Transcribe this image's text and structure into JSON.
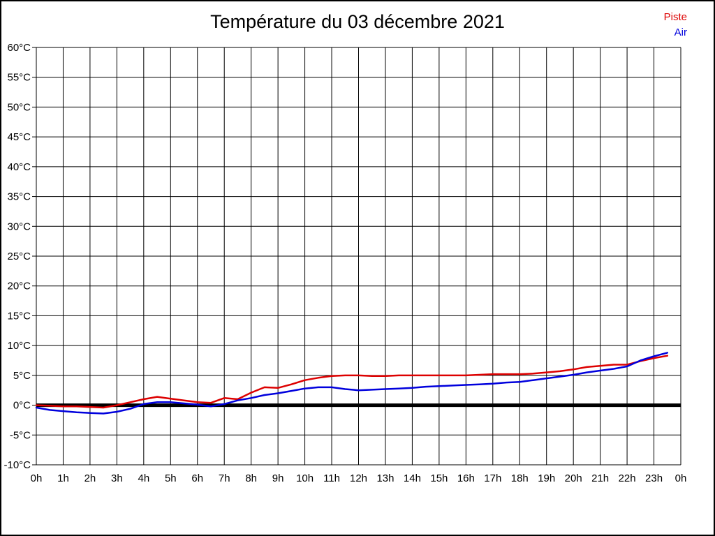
{
  "title": "Température du 03 décembre 2021",
  "legend": {
    "items": [
      {
        "label": "Piste",
        "color": "#dd0000"
      },
      {
        "label": "Air",
        "color": "#0000dd"
      }
    ],
    "position": "top-right"
  },
  "chart_data": {
    "type": "line",
    "title": "Température du 03 décembre 2021",
    "xlabel": "",
    "ylabel": "",
    "xlim": [
      0,
      24
    ],
    "ylim": [
      -10,
      60
    ],
    "grid": true,
    "grid_color": "#000000",
    "zero_line": {
      "value": 0,
      "color": "#000000",
      "width": 5
    },
    "x_tick_values": [
      0,
      1,
      2,
      3,
      4,
      5,
      6,
      7,
      8,
      9,
      10,
      11,
      12,
      13,
      14,
      15,
      16,
      17,
      18,
      19,
      20,
      21,
      22,
      23,
      24
    ],
    "x_tick_labels": [
      "0h",
      "1h",
      "2h",
      "3h",
      "4h",
      "5h",
      "6h",
      "7h",
      "8h",
      "9h",
      "10h",
      "11h",
      "12h",
      "13h",
      "14h",
      "15h",
      "16h",
      "17h",
      "18h",
      "19h",
      "20h",
      "21h",
      "22h",
      "23h",
      "0h"
    ],
    "y_tick_values": [
      60,
      55,
      50,
      45,
      40,
      35,
      30,
      25,
      20,
      15,
      10,
      5,
      0,
      -5,
      -10
    ],
    "y_tick_labels": [
      "60°C",
      "55°C",
      "50°C",
      "45°C",
      "40°C",
      "35°C",
      "30°C",
      "25°C",
      "20°C",
      "15°C",
      "10°C",
      "5°C",
      "0°C",
      "-5°C",
      "-10°C"
    ],
    "series": [
      {
        "name": "Piste",
        "color": "#dd0000",
        "x": [
          0,
          0.5,
          1,
          1.5,
          2,
          2.5,
          3,
          3.5,
          4,
          4.5,
          5,
          5.5,
          6,
          6.5,
          7,
          7.5,
          8,
          8.5,
          9,
          9.5,
          10,
          10.5,
          11,
          11.5,
          12,
          12.5,
          13,
          13.5,
          14,
          14.5,
          15,
          15.5,
          16,
          16.5,
          17,
          17.5,
          18,
          18.5,
          19,
          19.5,
          20,
          20.5,
          21,
          21.5,
          22,
          22.5,
          23,
          23.5
        ],
        "values": [
          0.0,
          -0.1,
          -0.2,
          -0.2,
          -0.3,
          -0.4,
          0.0,
          0.5,
          1.0,
          1.4,
          1.1,
          0.8,
          0.5,
          0.4,
          1.2,
          1.0,
          2.1,
          3.0,
          2.9,
          3.5,
          4.2,
          4.6,
          4.9,
          5.0,
          5.0,
          4.9,
          4.9,
          5.0,
          5.0,
          5.0,
          5.0,
          5.0,
          5.0,
          5.1,
          5.2,
          5.2,
          5.2,
          5.3,
          5.5,
          5.7,
          6.0,
          6.4,
          6.6,
          6.8,
          6.8,
          7.4,
          7.9,
          8.3
        ]
      },
      {
        "name": "Air",
        "color": "#0000dd",
        "x": [
          0,
          0.5,
          1,
          1.5,
          2,
          2.5,
          3,
          3.5,
          4,
          4.5,
          5,
          5.5,
          6,
          6.5,
          7,
          7.5,
          8,
          8.5,
          9,
          9.5,
          10,
          10.5,
          11,
          11.5,
          12,
          12.5,
          13,
          13.5,
          14,
          14.5,
          15,
          15.5,
          16,
          16.5,
          17,
          17.5,
          18,
          18.5,
          19,
          19.5,
          20,
          20.5,
          21,
          21.5,
          22,
          22.5,
          23,
          23.5
        ],
        "values": [
          -0.4,
          -0.8,
          -1.0,
          -1.2,
          -1.3,
          -1.4,
          -1.1,
          -0.6,
          0.2,
          0.5,
          0.5,
          0.3,
          0.1,
          -0.2,
          0.2,
          0.8,
          1.2,
          1.7,
          2.0,
          2.4,
          2.8,
          3.0,
          3.0,
          2.7,
          2.5,
          2.6,
          2.7,
          2.8,
          2.9,
          3.1,
          3.2,
          3.3,
          3.4,
          3.5,
          3.6,
          3.8,
          3.9,
          4.2,
          4.5,
          4.8,
          5.1,
          5.5,
          5.8,
          6.1,
          6.5,
          7.5,
          8.2,
          8.8
        ]
      }
    ],
    "legend_position": "top-right"
  }
}
